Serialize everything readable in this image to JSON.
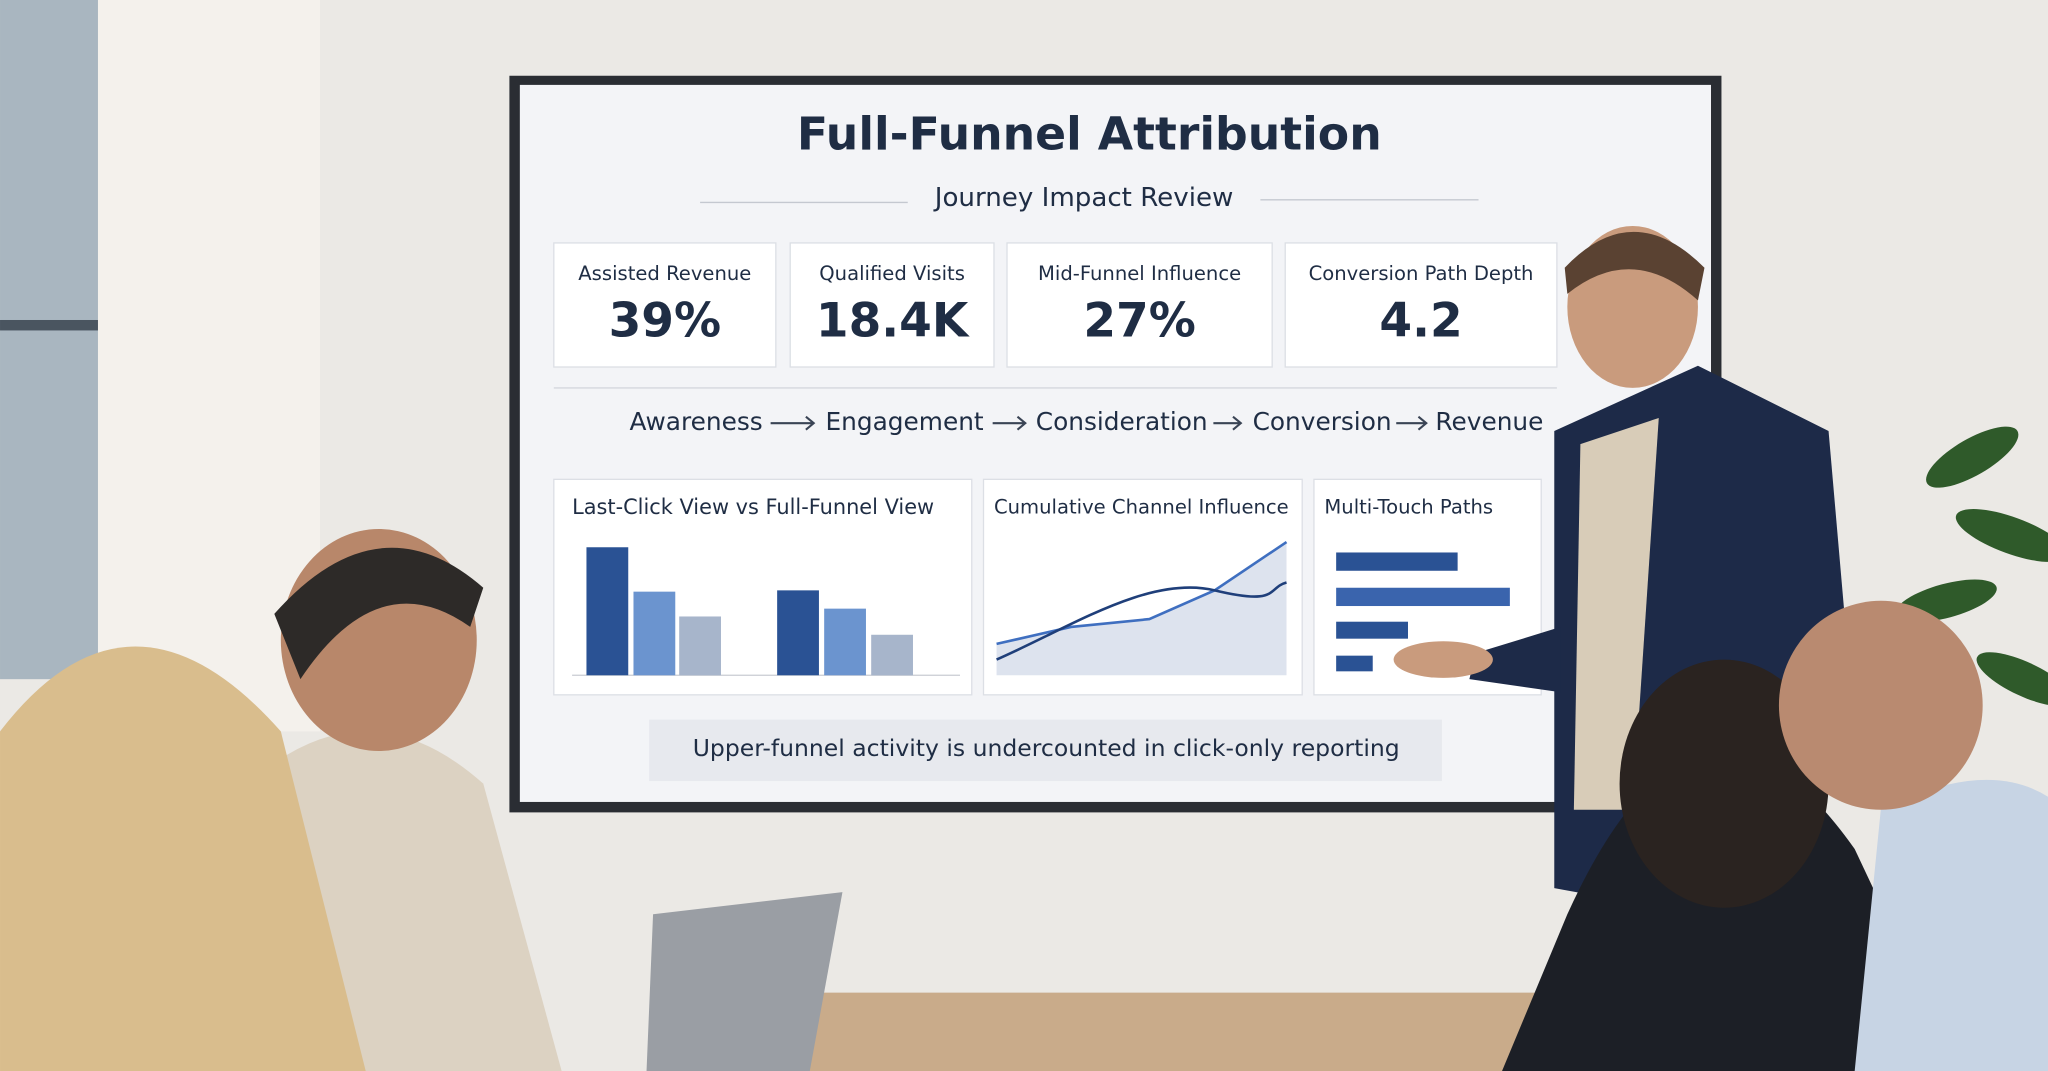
{
  "slide": {
    "title": "Full-Funnel Attribution",
    "subtitle": "Journey Impact Review",
    "kpis": [
      {
        "label": "Assisted Revenue",
        "value": "39%"
      },
      {
        "label": "Qualified Visits",
        "value": "18.4K"
      },
      {
        "label": "Mid-Funnel Influence",
        "value": "27%"
      },
      {
        "label": "Conversion Path Depth",
        "value": "4.2"
      }
    ],
    "funnel": [
      "Awareness",
      "Engagement",
      "Consideration",
      "Conversion",
      "Revenue"
    ],
    "panels": [
      "Last-Click View vs Full-Funnel View",
      "Cumulative Channel Influence",
      "Multi-Touch Paths"
    ],
    "note": "Upper-funnel activity is undercounted in click-only reporting"
  }
}
